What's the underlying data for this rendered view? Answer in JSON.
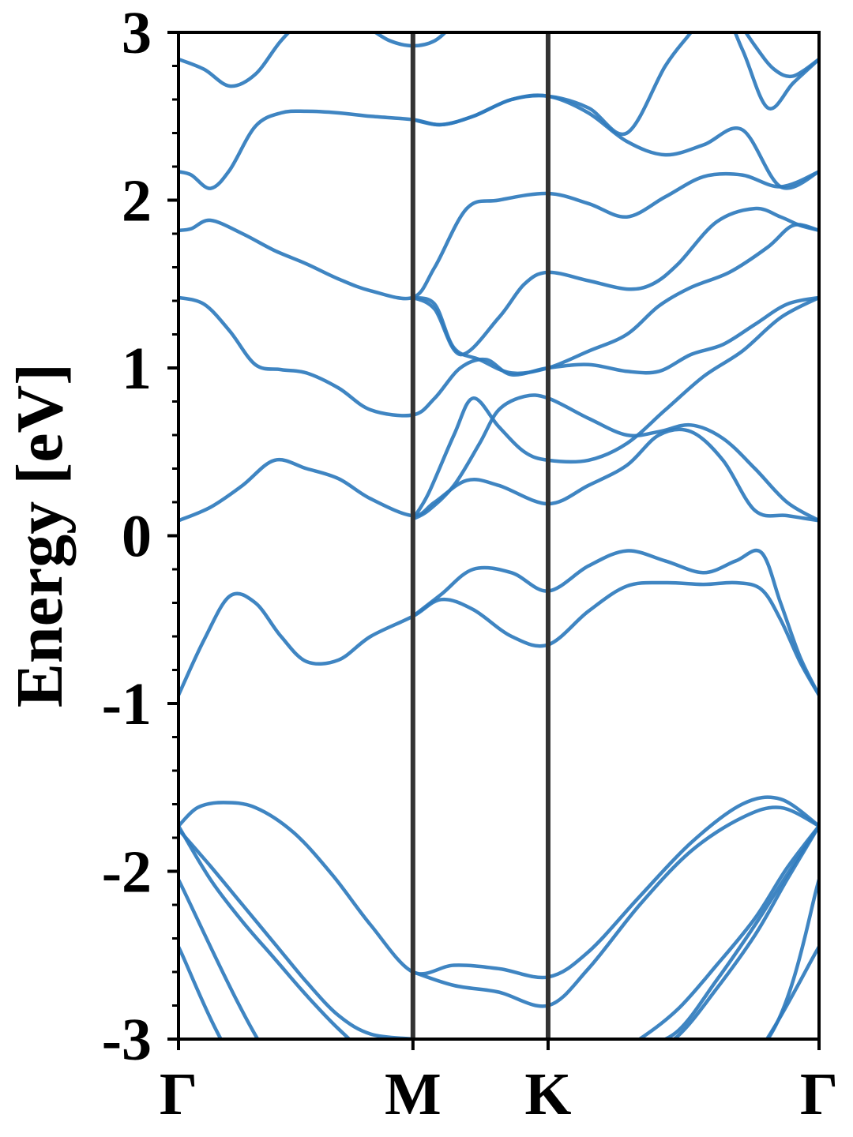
{
  "chart_data": {
    "type": "line",
    "title": "",
    "xlabel": "",
    "ylabel": "Energy [eV]",
    "ylim": [
      -3,
      3
    ],
    "yticks": [
      {
        "value": -3,
        "label": "-3"
      },
      {
        "value": -2,
        "label": "-2"
      },
      {
        "value": -1,
        "label": "-1"
      },
      {
        "value": 0,
        "label": "0"
      },
      {
        "value": 1,
        "label": "1"
      },
      {
        "value": 2,
        "label": "2"
      },
      {
        "value": 3,
        "label": "3"
      }
    ],
    "yminor_step": 0.2,
    "xlim": [
      0,
      1
    ],
    "kpoints": [
      {
        "label": "Γ",
        "x": 0.0
      },
      {
        "label": "M",
        "x": 0.366
      },
      {
        "label": "K",
        "x": 0.577
      },
      {
        "label": "Γ",
        "x": 1.0
      }
    ],
    "grid": false,
    "legend": "none",
    "colors": {
      "band": "#2f7bbd",
      "kpath_line": "#333333",
      "axes": "#000000"
    },
    "bands": [
      {
        "x": [
          0,
          0.1,
          0.24,
          0.366,
          0.45,
          0.577,
          0.74,
          0.88,
          1.0
        ],
        "y": [
          -2.45,
          -3.2,
          -3.5,
          -3.4,
          -3.3,
          -3.4,
          -3.5,
          -3.2,
          -2.45
        ]
      },
      {
        "x": [
          0,
          0.14,
          0.26,
          0.366,
          0.46,
          0.577,
          0.74,
          0.92,
          1.0
        ],
        "y": [
          -2.05,
          -3.1,
          -3.5,
          -3.4,
          -3.3,
          -3.4,
          -3.5,
          -3.0,
          -2.05
        ]
      },
      {
        "x": [
          0,
          0.05,
          0.1,
          0.15,
          0.2,
          0.25,
          0.3,
          0.366
        ],
        "y": [
          -1.75,
          -1.97,
          -2.2,
          -2.43,
          -2.66,
          -2.86,
          -2.97,
          -3.0
        ]
      },
      {
        "x": [
          0,
          0.05,
          0.1,
          0.15,
          0.2,
          0.25,
          0.3,
          0.366,
          0.4
        ],
        "y": [
          -1.73,
          -2.05,
          -2.3,
          -2.52,
          -2.74,
          -2.94,
          -3.1,
          -3.2,
          -3.22
        ]
      },
      {
        "x": [
          0.366,
          0.4,
          0.45,
          0.5,
          0.577,
          0.65,
          0.72,
          0.78,
          0.84,
          0.9,
          0.95,
          1.0
        ],
        "y": [
          -3.02,
          -3.12,
          -3.28,
          -3.35,
          -3.3,
          -3.15,
          -3.0,
          -2.82,
          -2.56,
          -2.28,
          -1.98,
          -1.73
        ]
      },
      {
        "x": [
          0.366,
          0.4,
          0.45,
          0.5,
          0.577,
          0.65,
          0.72,
          0.78,
          0.84,
          0.9,
          0.95,
          1.0
        ],
        "y": [
          -3.05,
          -3.2,
          -3.35,
          -3.4,
          -3.35,
          -3.2,
          -3.06,
          -2.95,
          -2.65,
          -2.32,
          -2.02,
          -1.73
        ]
      },
      {
        "x": [
          0.577,
          0.65,
          0.72,
          0.78,
          0.84,
          0.9,
          0.95,
          1.0
        ],
        "y": [
          -3.45,
          -3.3,
          -3.12,
          -2.98,
          -2.7,
          -2.38,
          -2.05,
          -1.73
        ]
      },
      {
        "x": [
          0,
          0.03,
          0.07,
          0.12,
          0.18,
          0.24,
          0.3,
          0.366,
          0.43,
          0.5,
          0.577,
          0.64,
          0.72,
          0.8,
          0.88,
          0.94,
          1.0
        ],
        "y": [
          -1.73,
          -1.62,
          -1.59,
          -1.62,
          -1.77,
          -2.02,
          -2.32,
          -2.6,
          -2.56,
          -2.58,
          -2.63,
          -2.48,
          -2.15,
          -1.83,
          -1.6,
          -1.57,
          -1.73
        ]
      },
      {
        "x": [
          0.366,
          0.43,
          0.5,
          0.577,
          0.64,
          0.72,
          0.8,
          0.88,
          0.94,
          1.0
        ],
        "y": [
          -2.6,
          -2.68,
          -2.72,
          -2.8,
          -2.58,
          -2.2,
          -1.88,
          -1.68,
          -1.62,
          -1.73
        ]
      },
      {
        "x": [
          0,
          0.04,
          0.08,
          0.12,
          0.16,
          0.2,
          0.25,
          0.3,
          0.366,
          0.41,
          0.46,
          0.52,
          0.577,
          0.64,
          0.7,
          0.76,
          0.82,
          0.87,
          0.91,
          0.94,
          0.97,
          1.0
        ],
        "y": [
          -0.95,
          -0.62,
          -0.36,
          -0.4,
          -0.6,
          -0.75,
          -0.74,
          -0.6,
          -0.48,
          -0.38,
          -0.44,
          -0.6,
          -0.65,
          -0.45,
          -0.3,
          -0.28,
          -0.29,
          -0.28,
          -0.32,
          -0.5,
          -0.75,
          -0.95
        ]
      },
      {
        "x": [
          0.366,
          0.41,
          0.46,
          0.52,
          0.577,
          0.64,
          0.7,
          0.76,
          0.82,
          0.87,
          0.91,
          0.94,
          0.97,
          1.0
        ],
        "y": [
          -0.48,
          -0.35,
          -0.2,
          -0.22,
          -0.33,
          -0.18,
          -0.09,
          -0.15,
          -0.22,
          -0.15,
          -0.1,
          -0.4,
          -0.72,
          -0.95
        ]
      },
      {
        "x": [
          0,
          0.05,
          0.1,
          0.15,
          0.2,
          0.25,
          0.3,
          0.366,
          0.4,
          0.45,
          0.5,
          0.577,
          0.64,
          0.7,
          0.75,
          0.8,
          0.85,
          0.9,
          0.95,
          1.0
        ],
        "y": [
          0.09,
          0.17,
          0.3,
          0.45,
          0.4,
          0.34,
          0.22,
          0.12,
          0.2,
          0.33,
          0.3,
          0.19,
          0.3,
          0.42,
          0.6,
          0.62,
          0.45,
          0.15,
          0.12,
          0.09
        ]
      },
      {
        "x": [
          0.366,
          0.39,
          0.43,
          0.47,
          0.5,
          0.54,
          0.577,
          0.64,
          0.7,
          0.75,
          0.8,
          0.85,
          0.9,
          0.95,
          1.0
        ],
        "y": [
          0.1,
          0.15,
          0.3,
          0.55,
          0.75,
          0.83,
          0.82,
          0.7,
          0.6,
          0.62,
          0.66,
          0.58,
          0.4,
          0.2,
          0.09
        ]
      },
      {
        "x": [
          0.366,
          0.39,
          0.43,
          0.46,
          0.5,
          0.54,
          0.577,
          0.64,
          0.7,
          0.76,
          0.82,
          0.88,
          0.94,
          1.0
        ],
        "y": [
          0.1,
          0.25,
          0.6,
          0.82,
          0.65,
          0.5,
          0.45,
          0.45,
          0.55,
          0.75,
          0.95,
          1.1,
          1.3,
          1.42
        ]
      },
      {
        "x": [
          0,
          0.04,
          0.08,
          0.12,
          0.16,
          0.2,
          0.25,
          0.3,
          0.366,
          0.4,
          0.44,
          0.48,
          0.52,
          0.577,
          0.64,
          0.7,
          0.75,
          0.8,
          0.85,
          0.9,
          0.95,
          1.0
        ],
        "y": [
          1.42,
          1.38,
          1.22,
          1.02,
          0.99,
          0.97,
          0.88,
          0.75,
          0.72,
          0.82,
          1.0,
          1.05,
          0.96,
          1.0,
          1.02,
          0.98,
          0.98,
          1.08,
          1.14,
          1.26,
          1.38,
          1.42
        ]
      },
      {
        "x": [
          0.366,
          0.4,
          0.43,
          0.47,
          0.52,
          0.577,
          0.64,
          0.7,
          0.75,
          0.8,
          0.86,
          0.92,
          0.96,
          1.0
        ],
        "y": [
          1.42,
          1.38,
          1.12,
          1.05,
          0.97,
          1.0,
          1.1,
          1.2,
          1.37,
          1.48,
          1.57,
          1.72,
          1.85,
          1.82
        ]
      },
      {
        "x": [
          0.366,
          0.4,
          0.44,
          0.5,
          0.54,
          0.577,
          0.64,
          0.7,
          0.74,
          0.78,
          0.84,
          0.9,
          0.94,
          0.97,
          1.0
        ],
        "y": [
          1.42,
          1.35,
          1.08,
          1.3,
          1.5,
          1.57,
          1.52,
          1.47,
          1.5,
          1.62,
          1.87,
          1.95,
          1.9,
          1.85,
          1.82
        ]
      },
      {
        "x": [
          0,
          0.02,
          0.05,
          0.1,
          0.15,
          0.2,
          0.25,
          0.3,
          0.366,
          0.4,
          0.45,
          0.5,
          0.577,
          0.64,
          0.7,
          0.76,
          0.82,
          0.88,
          0.94,
          1.0
        ],
        "y": [
          1.82,
          1.83,
          1.88,
          1.8,
          1.7,
          1.62,
          1.53,
          1.46,
          1.42,
          1.6,
          1.95,
          2.0,
          2.04,
          1.98,
          1.9,
          2.02,
          2.14,
          2.15,
          2.08,
          2.17
        ]
      },
      {
        "x": [
          0,
          0.02,
          0.05,
          0.08,
          0.12,
          0.16,
          0.2,
          0.25,
          0.3,
          0.366,
          0.41,
          0.46,
          0.52,
          0.577,
          0.64,
          0.7,
          0.76,
          0.82,
          0.88,
          0.94,
          1.0
        ],
        "y": [
          2.17,
          2.15,
          2.07,
          2.18,
          2.44,
          2.52,
          2.53,
          2.52,
          2.5,
          2.48,
          2.45,
          2.5,
          2.6,
          2.62,
          2.52,
          2.35,
          2.27,
          2.33,
          2.42,
          2.08,
          2.17
        ]
      },
      {
        "x": [
          0.366,
          0.41,
          0.46,
          0.52,
          0.577,
          0.64,
          0.7,
          0.76,
          0.8,
          0.84,
          0.88,
          0.92,
          0.96,
          1.0
        ],
        "y": [
          2.48,
          2.45,
          2.5,
          2.6,
          2.62,
          2.55,
          2.4,
          2.8,
          3.0,
          3.2,
          2.9,
          2.55,
          2.7,
          2.84
        ]
      },
      {
        "x": [
          0,
          0.04,
          0.08,
          0.12,
          0.16,
          0.2,
          0.24
        ],
        "y": [
          2.84,
          2.78,
          2.68,
          2.75,
          2.95,
          3.1,
          3.2
        ]
      },
      {
        "x": [
          0.86,
          0.9,
          0.93,
          0.96,
          1.0
        ],
        "y": [
          3.15,
          2.92,
          2.78,
          2.74,
          2.84
        ]
      },
      {
        "x": [
          0.3,
          0.33,
          0.366,
          0.4,
          0.43,
          0.46
        ],
        "y": [
          3.02,
          2.95,
          2.92,
          2.95,
          3.05,
          3.15
        ]
      }
    ]
  }
}
